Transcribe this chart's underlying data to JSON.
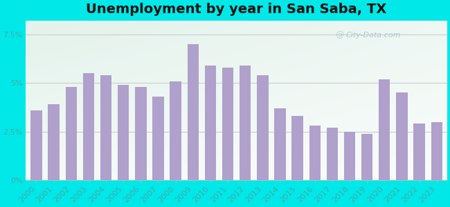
{
  "title": "Unemployment by year in San Saba, TX",
  "years": [
    2000,
    2001,
    2002,
    2003,
    2004,
    2005,
    2006,
    2007,
    2008,
    2009,
    2010,
    2011,
    2012,
    2013,
    2014,
    2015,
    2016,
    2017,
    2018,
    2019,
    2020,
    2021,
    2022,
    2023
  ],
  "values": [
    3.6,
    3.9,
    4.8,
    5.5,
    5.4,
    4.9,
    4.8,
    4.3,
    5.1,
    7.0,
    5.9,
    5.8,
    5.9,
    5.4,
    3.7,
    3.3,
    2.8,
    2.7,
    2.5,
    2.4,
    5.2,
    4.5,
    2.9,
    3.0
  ],
  "bar_color": "#b0a0cc",
  "bg_outer": "#00e8e8",
  "bg_plot_topleft": "#c8eedd",
  "bg_plot_white": "#f8fff8",
  "yticks": [
    0,
    2.5,
    5.0,
    7.5
  ],
  "ytick_labels": [
    "0%",
    "2.5%",
    "5%",
    "7.5%"
  ],
  "ylim": [
    0,
    8.2
  ],
  "title_fontsize": 14,
  "watermark": "City-Data.com",
  "tick_color": "#44aaaa",
  "tick_fontsize": 8
}
